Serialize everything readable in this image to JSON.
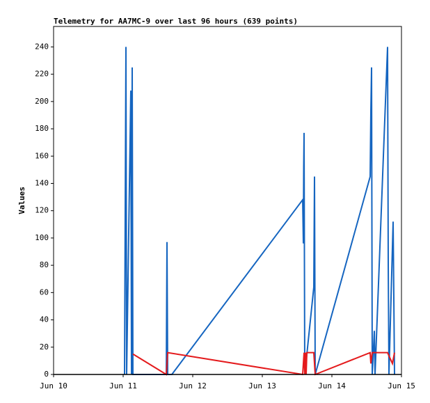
{
  "chart_data": {
    "type": "line",
    "title": "Telemetry for AA7MC-9 over last 96 hours (639 points)",
    "y_label": "Values",
    "xlim": [
      0,
      5
    ],
    "xticks": [
      {
        "value": 0,
        "label": "Jun 10"
      },
      {
        "value": 1,
        "label": "Jun 11"
      },
      {
        "value": 2,
        "label": "Jun 12"
      },
      {
        "value": 3,
        "label": "Jun 13"
      },
      {
        "value": 4,
        "label": "Jun 14"
      },
      {
        "value": 5,
        "label": "Jun 15"
      }
    ],
    "ylim": [
      0,
      255
    ],
    "yticks": [
      0,
      20,
      40,
      60,
      80,
      100,
      120,
      140,
      160,
      180,
      200,
      220,
      240
    ],
    "series": [
      {
        "color": "#1565c0",
        "x": [
          1.02,
          1.03,
          1.04,
          1.05,
          1.11,
          1.12,
          1.13,
          1.14,
          1.62,
          1.63,
          1.64,
          1.7,
          3.58,
          3.59,
          3.595,
          3.6,
          3.61,
          3.74,
          3.75,
          3.76,
          4.55,
          4.56,
          4.57,
          4.58,
          4.61,
          4.62,
          4.8,
          4.81,
          4.82,
          4.88,
          4.89,
          4.9
        ],
        "values": [
          0,
          121,
          240,
          0,
          208,
          0,
          225,
          0,
          0,
          97,
          0,
          0,
          128,
          96,
          152,
          177,
          0,
          64,
          145,
          0,
          145,
          193,
          225,
          0,
          32,
          0,
          240,
          80,
          0,
          112,
          56,
          0
        ]
      },
      {
        "color": "#e41a1c",
        "x": [
          1.14,
          1.62,
          1.64,
          3.58,
          3.6,
          3.61,
          3.62,
          3.63,
          3.64,
          3.74,
          3.76,
          4.55,
          4.56,
          4.58,
          4.8,
          4.87,
          4.9
        ],
        "values": [
          15,
          0,
          16,
          0,
          16,
          0,
          16,
          0,
          16,
          16,
          0,
          16,
          8,
          16,
          16,
          8,
          16
        ]
      }
    ]
  }
}
